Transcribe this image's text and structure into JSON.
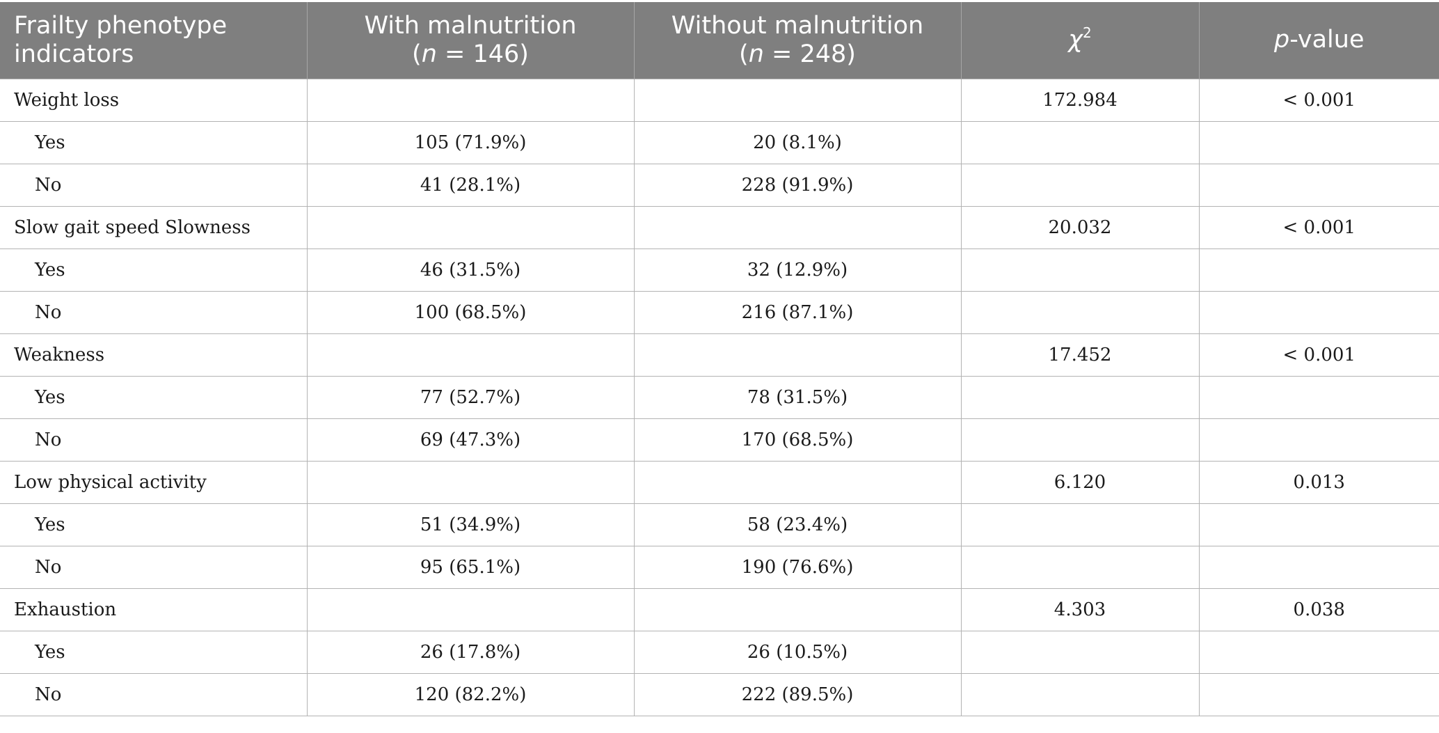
{
  "headers": {
    "indicators": [
      "Frailty phenotype",
      "indicators"
    ],
    "with": {
      "label": "With malnutrition",
      "n_prefix": "(",
      "n_var": "n",
      "n_rest": " = 146)"
    },
    "without": {
      "label": "Without malnutrition",
      "n_prefix": "(",
      "n_var": "n",
      "n_rest": " = 248)"
    },
    "chi": {
      "symbol": "χ",
      "exp": "2"
    },
    "p": {
      "var": "p",
      "rest": "-value"
    }
  },
  "rows": [
    {
      "label": "Weight loss",
      "chi2": "172.984",
      "p": "< 0.001"
    },
    {
      "label": "Yes",
      "with": "105 (71.9%)",
      "without": "20 (8.1%)"
    },
    {
      "label": "No",
      "with": "41 (28.1%)",
      "without": "228 (91.9%)"
    },
    {
      "label": "Slow gait speed Slowness",
      "chi2": "20.032",
      "p": "< 0.001"
    },
    {
      "label": "Yes",
      "with": "46 (31.5%)",
      "without": "32 (12.9%)"
    },
    {
      "label": "No",
      "with": "100 (68.5%)",
      "without": "216 (87.1%)"
    },
    {
      "label": "Weakness",
      "chi2": "17.452",
      "p": "< 0.001"
    },
    {
      "label": "Yes",
      "with": "77 (52.7%)",
      "without": "78 (31.5%)"
    },
    {
      "label": "No",
      "with": "69 (47.3%)",
      "without": "170 (68.5%)"
    },
    {
      "label": "Low physical activity",
      "chi2": "6.120",
      "p": "0.013"
    },
    {
      "label": "Yes",
      "with": "51 (34.9%)",
      "without": "58 (23.4%)"
    },
    {
      "label": "No",
      "with": "95 (65.1%)",
      "without": "190 (76.6%)"
    },
    {
      "label": "Exhaustion",
      "chi2": "4.303",
      "p": "0.038"
    },
    {
      "label": "Yes",
      "with": "26 (17.8%)",
      "without": "26 (10.5%)"
    },
    {
      "label": "No",
      "with": "120 (82.2%)",
      "without": "222 (89.5%)"
    }
  ]
}
